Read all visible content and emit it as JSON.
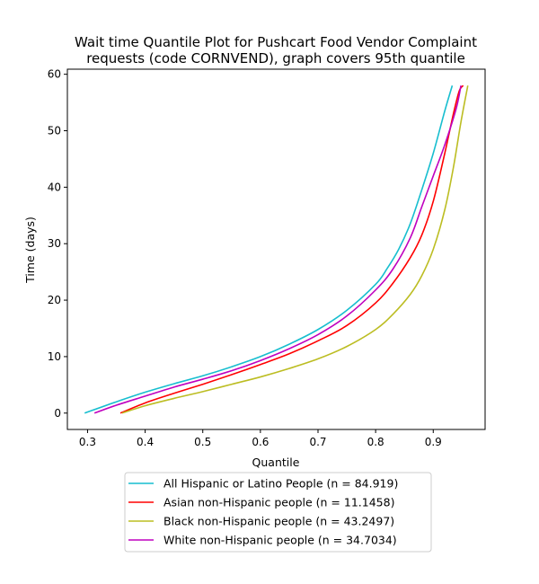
{
  "chart_data": {
    "type": "line",
    "title_lines": [
      "Wait time Quantile Plot for Pushcart Food Vendor Complaint",
      "requests (code CORNVEND), graph covers 95th quantile"
    ],
    "xlabel": "Quantile",
    "ylabel": "Time (days)",
    "xlim": [
      0.265,
      0.99
    ],
    "ylim": [
      -2.9,
      60.9
    ],
    "xticks": [
      0.3,
      0.4,
      0.5,
      0.6,
      0.7,
      0.8,
      0.9
    ],
    "xtick_labels": [
      "0.3",
      "0.4",
      "0.5",
      "0.6",
      "0.7",
      "0.8",
      "0.9"
    ],
    "yticks": [
      0,
      10,
      20,
      30,
      40,
      50,
      60
    ],
    "ytick_labels": [
      "0",
      "10",
      "20",
      "30",
      "40",
      "50",
      "60"
    ],
    "grid": false,
    "legend_position": "below-center",
    "series": [
      {
        "name": "All Hispanic or Latino People (n = 84.919)",
        "color": "#17becf",
        "x": [
          0.295,
          0.35,
          0.4,
          0.45,
          0.5,
          0.55,
          0.6,
          0.65,
          0.7,
          0.75,
          0.8,
          0.82,
          0.84,
          0.86,
          0.88,
          0.9,
          0.92,
          0.933
        ],
        "y": [
          0,
          2.0,
          3.7,
          5.2,
          6.6,
          8.2,
          10.0,
          12.2,
          14.8,
          18.2,
          22.8,
          25.6,
          29.0,
          33.5,
          39.5,
          46.0,
          53.5,
          58
        ]
      },
      {
        "name": "Asian non-Hispanic people (n = 11.1458)",
        "color": "#ff0000",
        "x": [
          0.357,
          0.4,
          0.45,
          0.5,
          0.55,
          0.6,
          0.65,
          0.7,
          0.75,
          0.8,
          0.83,
          0.86,
          0.88,
          0.9,
          0.92,
          0.935,
          0.945,
          0.952
        ],
        "y": [
          0,
          1.8,
          3.5,
          5.1,
          6.8,
          8.6,
          10.5,
          12.8,
          15.5,
          19.5,
          23.0,
          27.5,
          31.5,
          37.5,
          46.0,
          53.0,
          57.0,
          58
        ]
      },
      {
        "name": "Black non-Hispanic people (n = 43.2497)",
        "color": "#bcbd22",
        "x": [
          0.36,
          0.4,
          0.45,
          0.5,
          0.55,
          0.6,
          0.65,
          0.7,
          0.75,
          0.8,
          0.83,
          0.86,
          0.88,
          0.9,
          0.92,
          0.935,
          0.948,
          0.96
        ],
        "y": [
          0,
          1.3,
          2.6,
          3.8,
          5.1,
          6.4,
          7.9,
          9.6,
          11.8,
          14.8,
          17.5,
          21.0,
          24.3,
          29.0,
          36.0,
          43.5,
          51.5,
          58
        ]
      },
      {
        "name": "White non-Hispanic people (n = 34.7034)",
        "color": "#bf00bf",
        "x": [
          0.312,
          0.35,
          0.4,
          0.45,
          0.5,
          0.55,
          0.6,
          0.65,
          0.7,
          0.75,
          0.8,
          0.83,
          0.86,
          0.88,
          0.9,
          0.92,
          0.94,
          0.948
        ],
        "y": [
          0,
          1.4,
          3.0,
          4.6,
          6.0,
          7.5,
          9.3,
          11.4,
          13.9,
          17.2,
          21.8,
          25.5,
          31.0,
          36.5,
          42.0,
          47.5,
          54.0,
          58
        ]
      }
    ]
  }
}
